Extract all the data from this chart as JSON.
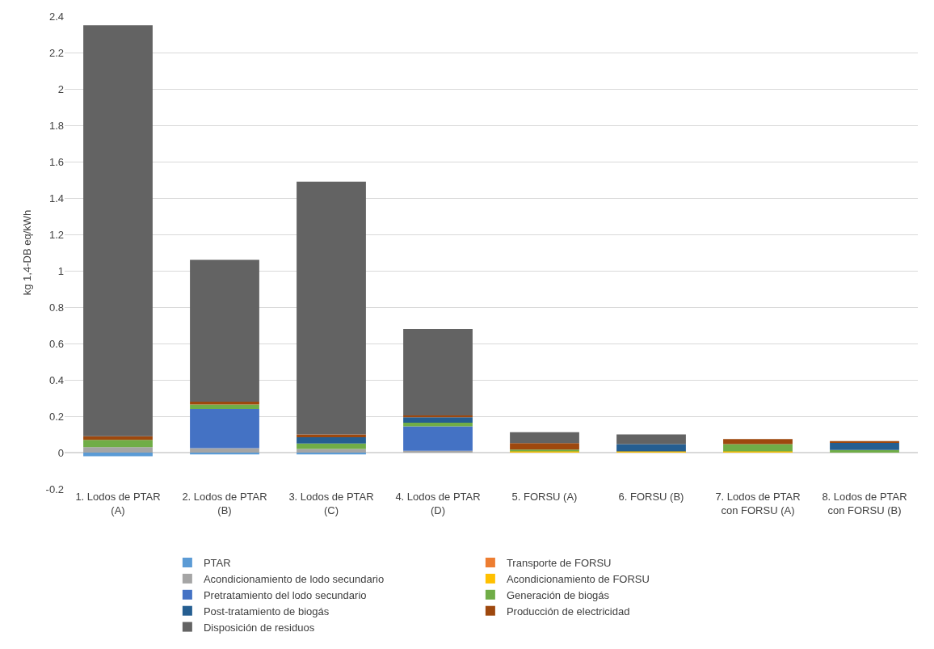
{
  "chart_data": {
    "type": "bar",
    "stacked": true,
    "ylabel": "kg 1,4-DB eq/kWh",
    "categories": [
      "1. Lodos de PTAR (A)",
      "2. Lodos de PTAR (B)",
      "3. Lodos de PTAR (C)",
      "4. Lodos de PTAR (D)",
      "5. FORSU (A)",
      "6. FORSU (B)",
      "7. Lodos de PTAR con FORSU (A)",
      "8. Lodos de PTAR con FORSU (B)"
    ],
    "series": [
      {
        "name": "PTAR",
        "color": "#5b9bd5",
        "values": [
          -0.02,
          -0.01,
          -0.01,
          null,
          0,
          0,
          0,
          0
        ]
      },
      {
        "name": "Transporte de FORSU",
        "color": "#ed7d31",
        "values": [
          0,
          0,
          0,
          0,
          0.002,
          0.002,
          0.002,
          null
        ]
      },
      {
        "name": "Acondicionamiento de lodo secundario",
        "color": "#a5a5a5",
        "values": [
          0.03,
          0.025,
          0.02,
          0.01,
          0,
          0,
          0,
          0
        ]
      },
      {
        "name": "Acondicionamiento de FORSU",
        "color": "#ffc000",
        "values": [
          0,
          0,
          0,
          0,
          0.005,
          0.005,
          0.005,
          0
        ]
      },
      {
        "name": "Pretratamiento del lodo secundario",
        "color": "#4472c4",
        "values": [
          0,
          0.215,
          0,
          0.135,
          0,
          0,
          0,
          0
        ]
      },
      {
        "name": "Generación de biogás",
        "color": "#70ad47",
        "values": [
          0.04,
          0.025,
          0.03,
          0.02,
          0.01,
          0,
          0.04,
          0.015
        ]
      },
      {
        "name": "Post-tratamiento de biogás",
        "color": "#255e91",
        "values": [
          0,
          0,
          0.035,
          0.03,
          0,
          0.04,
          0,
          0.04
        ]
      },
      {
        "name": "Producción de electricidad",
        "color": "#9e480e",
        "values": [
          0.02,
          0.015,
          0.015,
          0.01,
          0.035,
          0,
          0.028,
          0.008
        ]
      },
      {
        "name": "Disposición de residuos",
        "color": "#636363",
        "values": [
          2.26,
          0.78,
          1.39,
          0.475,
          0.06,
          0.053,
          0,
          0
        ]
      }
    ],
    "ylim": [
      -0.2,
      2.4
    ],
    "yticks": [
      -0.2,
      0,
      0.2,
      0.4,
      0.6,
      0.8,
      1,
      1.2,
      1.4,
      1.6,
      1.8,
      2,
      2.2,
      2.4
    ],
    "grid": "y",
    "legend": "bottom"
  }
}
